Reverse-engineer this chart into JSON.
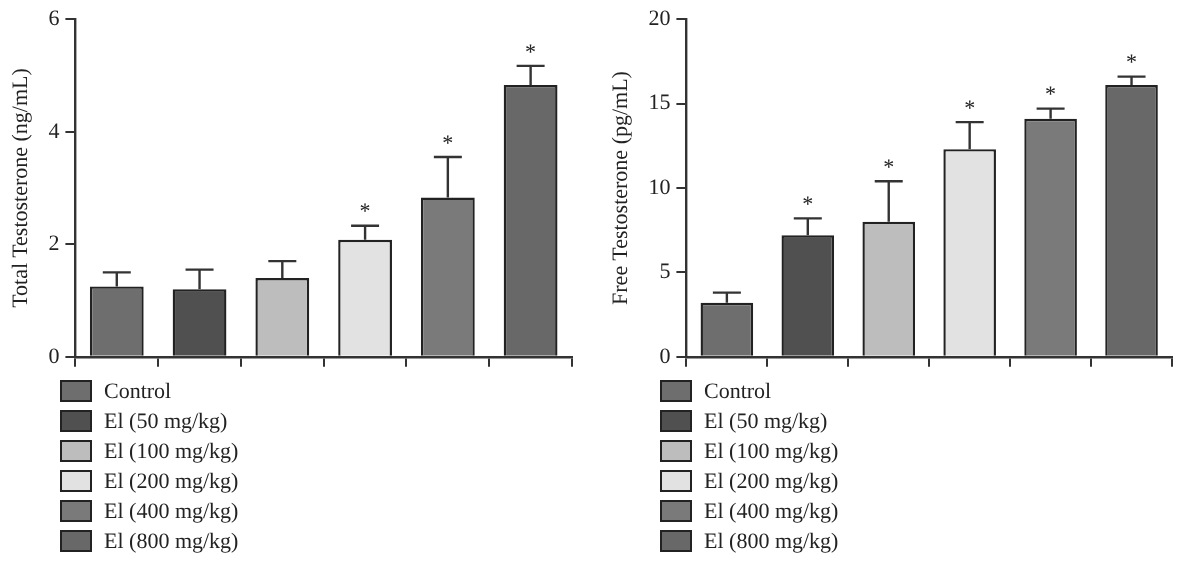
{
  "chart_data": [
    {
      "type": "bar",
      "ylabel": "Total Testosterone (ng/mL)",
      "categories": [
        null,
        null,
        null,
        null,
        null,
        null
      ],
      "ylim": [
        0,
        6
      ],
      "yticks": [
        0,
        2,
        4,
        6
      ],
      "legend": "bottom",
      "series": [
        {
          "name": "Control",
          "color": "#6e6e6e",
          "values": [
            1.25,
            null,
            null,
            null,
            null,
            null
          ],
          "errors": [
            [
              1.25,
              1.5
            ],
            null,
            null,
            null,
            null,
            null
          ]
        },
        {
          "name": "El (50 mg/kg)",
          "color": "#505050",
          "values": [
            null,
            1.2,
            null,
            null,
            null,
            null
          ],
          "errors": [
            null,
            [
              1.2,
              1.55
            ],
            null,
            null,
            null,
            null
          ]
        },
        {
          "name": "El (100 mg/kg)",
          "color": "#bdbdbd",
          "values": [
            null,
            null,
            1.4,
            null,
            null,
            null
          ],
          "errors": [
            null,
            null,
            [
              1.4,
              1.7
            ],
            null,
            null,
            null
          ]
        },
        {
          "name": "El (200 mg/kg)",
          "color": "#e2e2e2",
          "values": [
            null,
            null,
            null,
            2.08,
            null,
            null
          ],
          "errors": [
            null,
            null,
            null,
            [
              2.08,
              2.33
            ],
            null,
            null
          ],
          "value_labels": [
            null,
            null,
            null,
            "*",
            null,
            null
          ]
        },
        {
          "name": "El (400 mg/kg)",
          "color": "#7a7a7a",
          "values": [
            null,
            null,
            null,
            null,
            2.83,
            null
          ],
          "errors": [
            null,
            null,
            null,
            null,
            [
              2.83,
              3.55
            ],
            null
          ],
          "value_labels": [
            null,
            null,
            null,
            null,
            "*",
            null
          ]
        },
        {
          "name": "El (800 mg/kg)",
          "color": "#686868",
          "values": [
            null,
            null,
            null,
            null,
            null,
            4.83
          ],
          "errors": [
            null,
            null,
            null,
            null,
            null,
            [
              4.83,
              5.17
            ]
          ],
          "value_labels": [
            null,
            null,
            null,
            null,
            null,
            "*"
          ]
        }
      ]
    },
    {
      "type": "bar",
      "ylabel": "Free Testosterone (pg/mL)",
      "categories": [
        null,
        null,
        null,
        null,
        null,
        null
      ],
      "ylim": [
        0,
        20
      ],
      "yticks": [
        0,
        5,
        10,
        15,
        20
      ],
      "legend": "bottom",
      "series": [
        {
          "name": "Control",
          "color": "#6e6e6e",
          "values": [
            3.2,
            null,
            null,
            null,
            null,
            null
          ],
          "errors": [
            [
              3.2,
              3.8
            ],
            null,
            null,
            null,
            null,
            null
          ]
        },
        {
          "name": "El (50 mg/kg)",
          "color": "#505050",
          "values": [
            null,
            7.2,
            null,
            null,
            null,
            null
          ],
          "errors": [
            null,
            [
              7.2,
              8.2
            ],
            null,
            null,
            null,
            null
          ],
          "value_labels": [
            null,
            "*",
            null,
            null,
            null,
            null
          ]
        },
        {
          "name": "El (100 mg/kg)",
          "color": "#bdbdbd",
          "values": [
            null,
            null,
            8.0,
            null,
            null,
            null
          ],
          "errors": [
            null,
            null,
            [
              8.0,
              10.4
            ],
            null,
            null,
            null
          ],
          "value_labels": [
            null,
            null,
            "*",
            null,
            null,
            null
          ]
        },
        {
          "name": "El (200 mg/kg)",
          "color": "#e2e2e2",
          "values": [
            null,
            null,
            null,
            12.3,
            null,
            null
          ],
          "errors": [
            null,
            null,
            null,
            [
              12.3,
              13.9
            ],
            null,
            null
          ],
          "value_labels": [
            null,
            null,
            null,
            "*",
            null,
            null
          ]
        },
        {
          "name": "El (400 mg/kg)",
          "color": "#7a7a7a",
          "values": [
            null,
            null,
            null,
            null,
            14.1,
            null
          ],
          "errors": [
            null,
            null,
            null,
            null,
            [
              14.1,
              14.7
            ],
            null
          ],
          "value_labels": [
            null,
            null,
            null,
            null,
            "*",
            null
          ]
        },
        {
          "name": "El (800 mg/kg)",
          "color": "#686868",
          "values": [
            null,
            null,
            null,
            null,
            null,
            16.1
          ],
          "errors": [
            null,
            null,
            null,
            null,
            null,
            [
              16.1,
              16.6
            ]
          ],
          "value_labels": [
            null,
            null,
            null,
            null,
            null,
            "*"
          ]
        }
      ]
    }
  ]
}
